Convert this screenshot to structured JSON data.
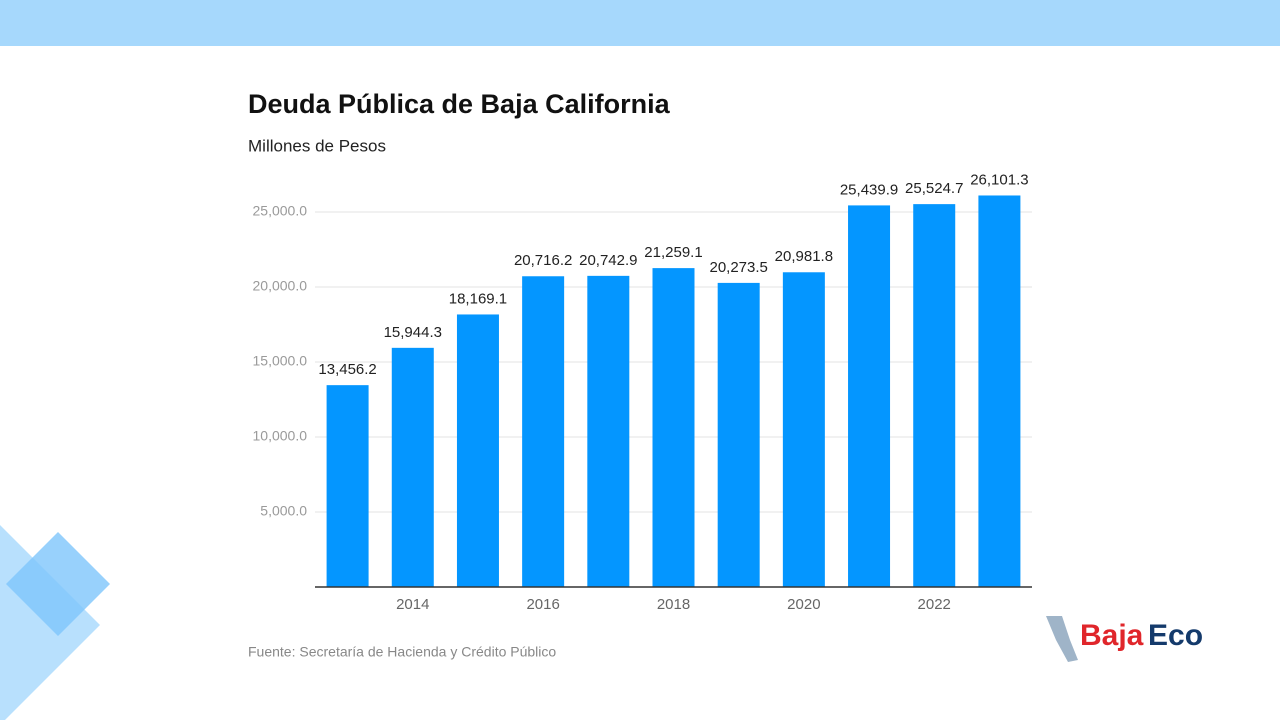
{
  "chart_data": {
    "type": "bar",
    "title": "Deuda Pública de Baja California",
    "subtitle": "Millones de Pesos",
    "source": "Fuente: Secretaría de Hacienda y Crédito Público",
    "categories": [
      null,
      "2014",
      null,
      "2016",
      null,
      "2018",
      null,
      "2020",
      null,
      "2022",
      null
    ],
    "values": [
      13456.2,
      15944.3,
      18169.1,
      20716.2,
      20742.9,
      21259.1,
      20273.5,
      20981.8,
      25439.9,
      25524.7,
      26101.3
    ],
    "value_labels": [
      "13,456.2",
      "15,944.3",
      "18,169.1",
      "20,716.2",
      "20,742.9",
      "21,259.1",
      "20,273.5",
      "20,981.8",
      "25,439.9",
      "25,524.7",
      "26,101.3"
    ],
    "color": "#0496ff",
    "ylim": [
      0,
      27000
    ],
    "yticks": [
      {
        "value": 5000,
        "label": "5,000.0"
      },
      {
        "value": 10000,
        "label": "10,000.0"
      },
      {
        "value": 15000,
        "label": "15,000.0"
      },
      {
        "value": 20000,
        "label": "20,000.0"
      },
      {
        "value": 25000,
        "label": "25,000.0"
      }
    ],
    "grid": true
  },
  "branding": {
    "logo_first": "Baja",
    "logo_second": "Eco"
  }
}
